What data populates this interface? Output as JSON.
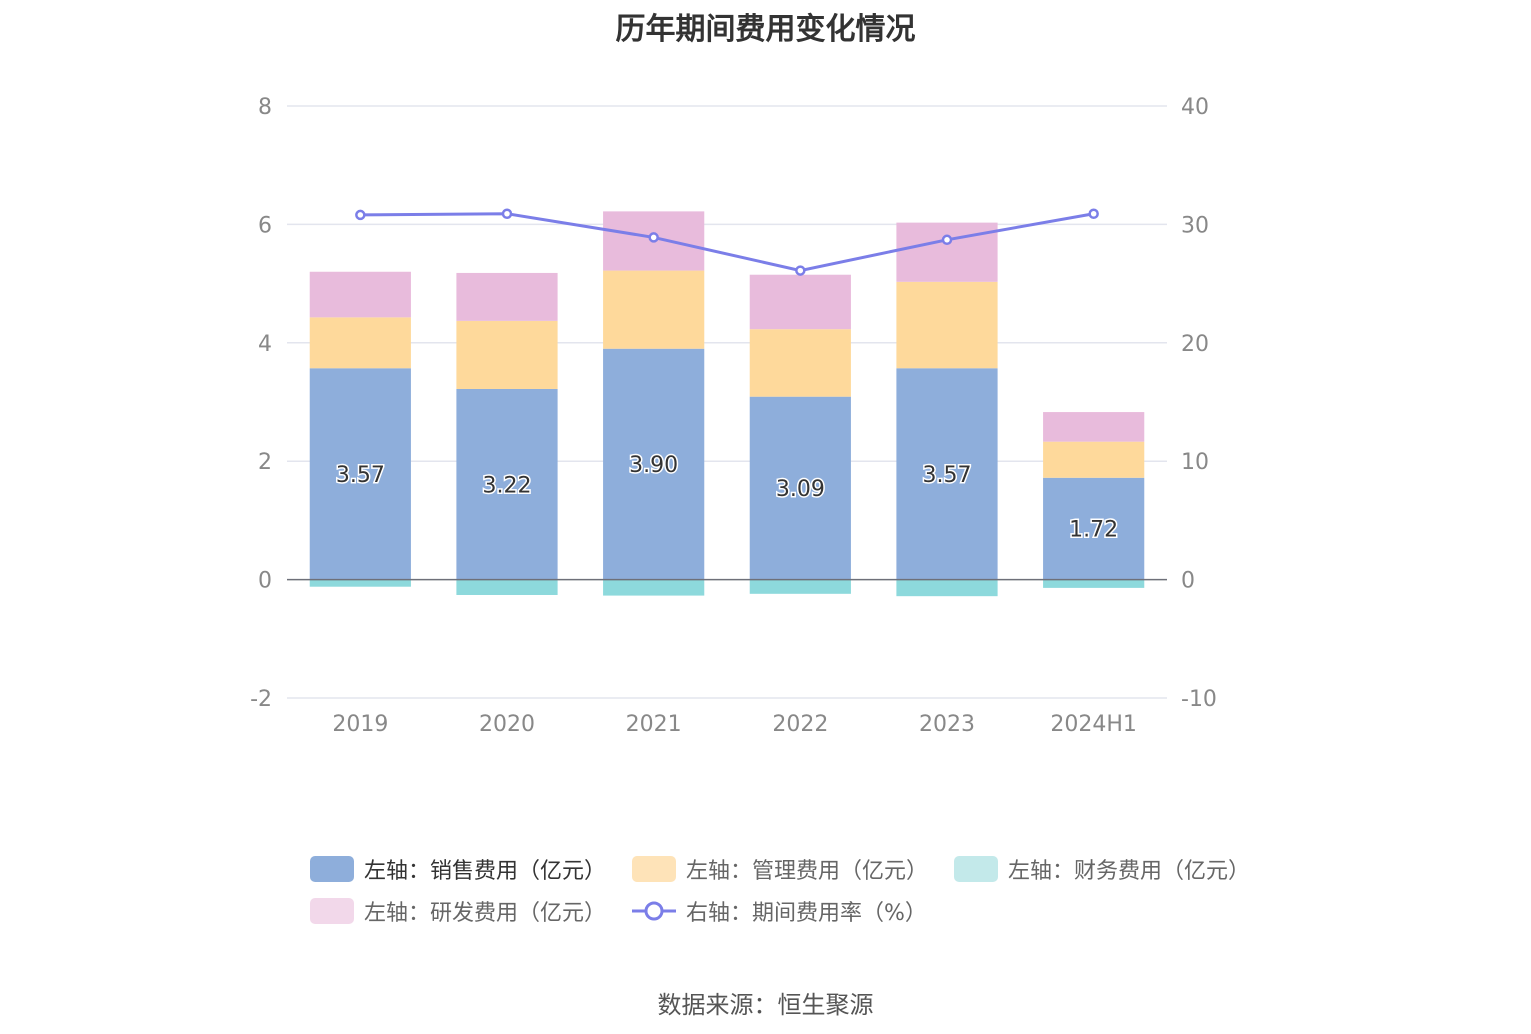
{
  "title": "历年期间费用变化情况",
  "source": "数据来源：恒生聚源",
  "chart_data": {
    "type": "bar",
    "stacked": true,
    "categories": [
      "2019",
      "2020",
      "2021",
      "2022",
      "2023",
      "2024H1"
    ],
    "y_left": {
      "ticks": [
        "8",
        "6",
        "4",
        "2",
        "0",
        "-2"
      ],
      "ylim": [
        -2,
        8
      ]
    },
    "y_right": {
      "ticks": [
        "40",
        "30",
        "20",
        "10",
        "0",
        "-10"
      ],
      "ylim": [
        -10,
        40
      ]
    },
    "grid": true,
    "legend_position": "bottom",
    "series": [
      {
        "name": "左轴：销售费用（亿元）",
        "axis": "left",
        "type": "bar",
        "color": "#8eaedb",
        "values": [
          3.57,
          3.22,
          3.9,
          3.09,
          3.57,
          1.72
        ],
        "labels": [
          "3.57",
          "3.22",
          "3.90",
          "3.09",
          "3.57",
          "1.72"
        ]
      },
      {
        "name": "左轴：管理费用（亿元）",
        "axis": "left",
        "type": "bar",
        "color": "#fed99b",
        "values": [
          0.86,
          1.15,
          1.32,
          1.14,
          1.46,
          0.61
        ]
      },
      {
        "name": "左轴：财务费用（亿元）",
        "axis": "left",
        "type": "bar",
        "color": "#8dd9dc",
        "values": [
          -0.12,
          -0.26,
          -0.27,
          -0.24,
          -0.28,
          -0.14
        ]
      },
      {
        "name": "左轴：研发费用（亿元）",
        "axis": "left",
        "type": "bar",
        "color": "#e8bbdc",
        "values": [
          0.77,
          0.81,
          1.0,
          0.92,
          1.0,
          0.5
        ]
      },
      {
        "name": "右轴：期间费用率（%）",
        "axis": "right",
        "type": "line",
        "color": "#7b7ee8",
        "values": [
          30.8,
          30.9,
          28.9,
          26.1,
          28.7,
          30.9
        ]
      }
    ],
    "legend_swatch_colors": [
      "#8eaedb",
      "#fee3b8",
      "#c3e9ea",
      "#f2d8ea",
      "#7b7ee8"
    ]
  }
}
